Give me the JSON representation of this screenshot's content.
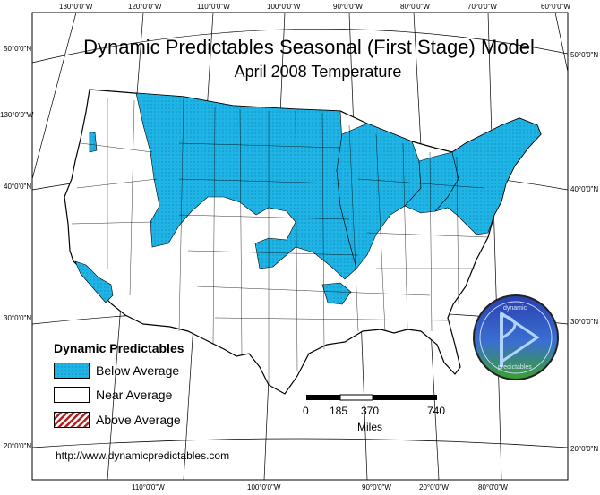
{
  "title": "Dynamic Predictables Seasonal (First Stage) Model",
  "subtitle": "April 2008 Temperature",
  "top_lon_labels": [
    "130°0'0\"W",
    "120°0'0\"W",
    "110°0'0\"W",
    "100°0'0\"W",
    "90°0'0\"W",
    "80°0'0\"W",
    "70°0'0\"W",
    "60°0'0\"W"
  ],
  "bottom_lon_labels": [
    "110°0'0\"W",
    "100°0'0\"W",
    "90°0'0\"W",
    "20°0'0\"W",
    "80°0'0\"W"
  ],
  "left_lat_labels": [
    "50°0'0\"N",
    "130°0'0\"W",
    "40°0'0\"N",
    "30°0'0\"N",
    "20°0'0\"N"
  ],
  "right_lat_labels": [
    "50°0'0\"N",
    "40°0'0\"N",
    "30°0'0\"N",
    "20°0'0\"N"
  ],
  "legend": {
    "title": "Dynamic Predictables",
    "items": [
      {
        "label": "Below Average",
        "color": "#1eb4e6"
      },
      {
        "label": "Near Average",
        "color": "#ffffff"
      },
      {
        "label": "Above Average",
        "color": "#b02020"
      }
    ]
  },
  "scale": {
    "ticks": [
      "0",
      "185",
      "370",
      "740"
    ],
    "unit": "Miles"
  },
  "url": "http://www.dynamicpredictables.com",
  "logo": {
    "top_text": "dynamic",
    "bottom_text": "predictables"
  },
  "colors": {
    "below": "#1eb4e6",
    "land": "#ffffff",
    "outline": "#000000"
  }
}
